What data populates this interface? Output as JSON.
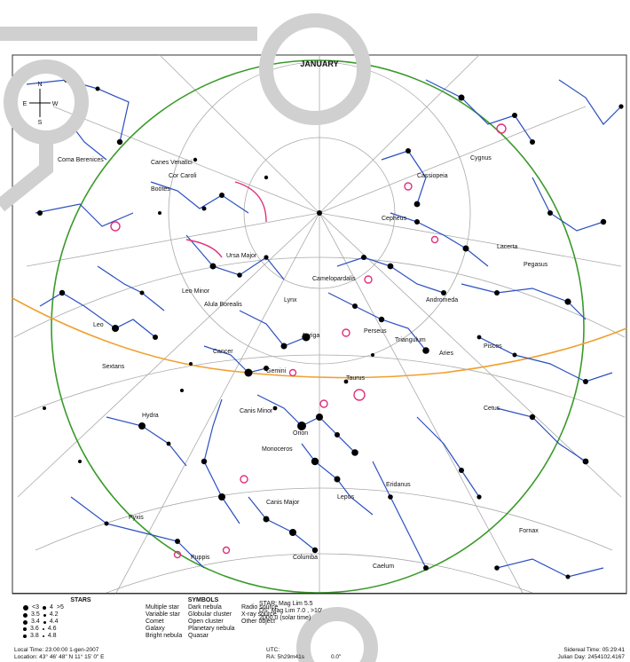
{
  "title": "JANUARY",
  "compass": {
    "n": "N",
    "s": "S",
    "e": "E",
    "w": "W"
  },
  "constellations": [
    "Canes Venatici",
    "Coma Berenices",
    "Cor Caroli",
    "Ursa Major",
    "Leo Minor",
    "Leo",
    "Camelopardalis",
    "Lynx",
    "Cancer",
    "Gemini",
    "Auriga",
    "Perseus",
    "Triangulum",
    "Andromeda",
    "Pegasus",
    "Pisces",
    "Aries",
    "Taurus",
    "Orion",
    "Monoceros",
    "Hydra",
    "Sextans",
    "Canis Minor",
    "Canis Major",
    "Eridanus",
    "Cetus",
    "Pyxis",
    "Puppis",
    "Columba",
    "Caelum",
    "Fornax",
    "Lepus",
    "Lacerta",
    "Cepheus",
    "Cygnus",
    "Cassiopeia",
    "Boötes",
    "Alula Borealis"
  ],
  "legend": {
    "stars_title": "STARS",
    "stars": [
      "<3",
      "4",
      "3.5",
      "4.2",
      "3.4",
      "4.4",
      "3.6",
      "4.6",
      "3.8",
      "4.8",
      ">5"
    ],
    "symbols_title": "SYMBOLS",
    "symbols": [
      "Multiple star",
      "Variable star",
      "Comet",
      "Galaxy",
      "Bright nebula",
      "Dark nebula",
      "Globular cluster",
      "Open cluster",
      "Planetary nebula",
      "Quasar",
      "Radio source",
      "X-ray source",
      "Other object"
    ],
    "info": [
      "STAR: Mag Lim 5.5",
      "DS: Mag Lim 7.0 , >10'",
      "2000.0 (solar time)"
    ]
  },
  "footer": {
    "local_time": "Local Time: 23:00:00 1-gen-2007",
    "location": "Location: 43° 46' 48\" N 11° 15' 0\" E",
    "utc": "UTC:",
    "ra": "RA: 5h29m41s",
    "dec": "0.0\"",
    "sidereal": "Sidereal Time: 05:29:41",
    "julian": "Julian Day: 2454102.4167"
  },
  "colors": {
    "horizon": "#3a9a2a",
    "ecliptic": "#f0a030",
    "lines": "#2a4fc0",
    "deep_sky": "#e0307a",
    "grid": "#aaaaaa",
    "decor": "#d0d0d0"
  }
}
